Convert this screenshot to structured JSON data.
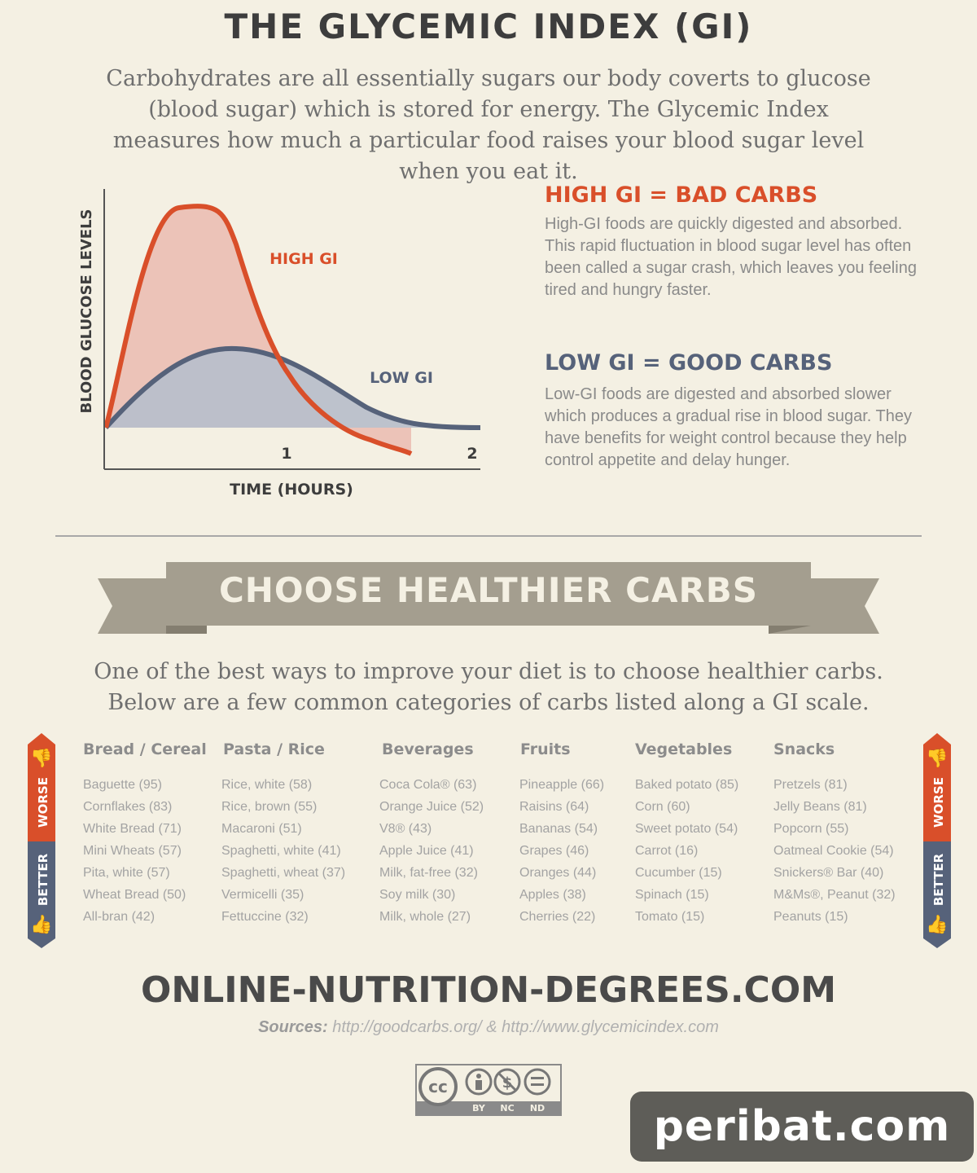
{
  "title": "THE GLYCEMIC INDEX (GI)",
  "intro": "Carbohydrates are all essentially sugars our body coverts to glucose (blood sugar) which is stored for energy. The Glycemic Index measures how much a particular food raises your blood sugar level when you eat it.",
  "chart": {
    "ylabel": "BLOOD GLUCOSE LEVELS",
    "xlabel": "TIME (HOURS)",
    "tick_1": "1",
    "tick_2": "2",
    "high_label": "HIGH GI",
    "low_label": "LOW GI",
    "colors": {
      "high": "#d94f2a",
      "high_fill": "#ecc3b8",
      "low": "#56627a",
      "low_fill": "#b9bfca"
    }
  },
  "high": {
    "heading": "HIGH GI = BAD CARBS",
    "text": "High-GI foods are quickly digested and absorbed. This rapid fluctuation in blood sugar level has often been called a sugar crash, which leaves you feeling tired and hungry faster.",
    "color": "#d94f2a"
  },
  "low": {
    "heading": "LOW GI = GOOD CARBS",
    "text": "Low-GI foods are digested and absorbed slower which produces a gradual rise in blood sugar. They have benefits for weight control because they help control appetite and delay hunger.",
    "color": "#56627a"
  },
  "banner": {
    "text": "CHOOSE HEALTHIER CARBS",
    "color": "#a49e8f"
  },
  "sub_intro": "One of the best ways to improve your diet is to choose healthier carbs. Below are a few common categories of carbs listed along a GI scale.",
  "scale": {
    "worse": "WORSE",
    "better": "BETTER",
    "worse_color": "#d94f2a",
    "better_color": "#56627a"
  },
  "categories": [
    {
      "name": "Bread / Cereal",
      "items": [
        "Baguette (95)",
        "Cornflakes (83)",
        "White Bread (71)",
        "Mini Wheats (57)",
        "Pita, white (57)",
        "Wheat Bread (50)",
        "All-bran (42)"
      ]
    },
    {
      "name": "Pasta / Rice",
      "items": [
        "Rice, white (58)",
        "Rice, brown (55)",
        "Macaroni (51)",
        "Spaghetti, white (41)",
        "Spaghetti, wheat (37)",
        "Vermicelli (35)",
        "Fettuccine (32)"
      ]
    },
    {
      "name": "Beverages",
      "items": [
        "Coca Cola® (63)",
        "Orange Juice (52)",
        "V8® (43)",
        "Apple Juice (41)",
        "Milk, fat-free (32)",
        "Soy milk (30)",
        "Milk, whole (27)"
      ]
    },
    {
      "name": "Fruits",
      "items": [
        "Pineapple (66)",
        "Raisins (64)",
        "Bananas (54)",
        "Grapes (46)",
        "Oranges (44)",
        "Apples (38)",
        "Cherries (22)"
      ]
    },
    {
      "name": "Vegetables",
      "items": [
        "Baked potato (85)",
        "Corn (60)",
        "Sweet potato (54)",
        "Carrot (16)",
        "Cucumber (15)",
        "Spinach (15)",
        "Tomato (15)"
      ]
    },
    {
      "name": "Snacks",
      "items": [
        "Pretzels (81)",
        "Jelly Beans (81)",
        "Popcorn (55)",
        "Oatmeal Cookie (54)",
        "Snickers® Bar (40)",
        "M&Ms®, Peanut (32)",
        "Peanuts (15)"
      ]
    }
  ],
  "site": "ONLINE-NUTRITION-DEGREES.COM",
  "sources": {
    "label": "Sources:",
    "text": "http://goodcarbs.org/ & http://www.glycemicindex.com"
  },
  "license": {
    "cc": "cc",
    "by": "BY",
    "nc": "NC",
    "nd": "ND"
  },
  "watermark": "peribat.com"
}
